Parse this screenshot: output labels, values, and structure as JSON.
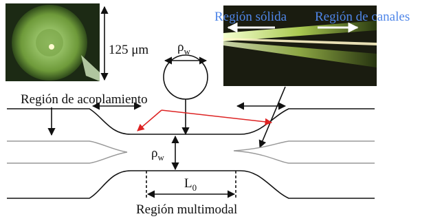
{
  "labels": {
    "diameter": "125 μm",
    "rho_top": {
      "main": "ρ",
      "sub": "w"
    },
    "coupling": "Región de acoplamiento",
    "solid": "Región sólida",
    "channels": "Región de canales",
    "rho_mid": {
      "main": "ρ",
      "sub": "w"
    },
    "length": {
      "main": "L",
      "sub": "0"
    },
    "multimode": "Región multimodal"
  }
}
